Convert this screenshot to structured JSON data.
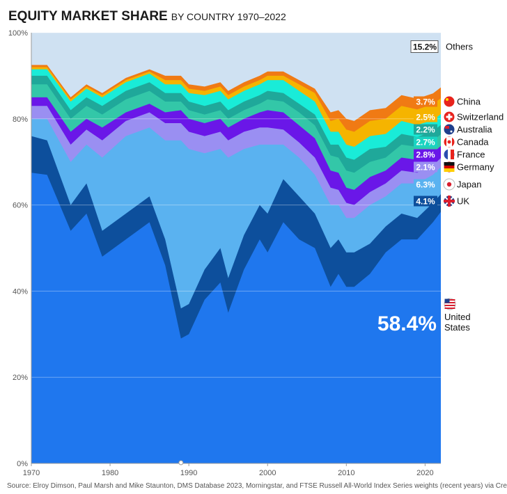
{
  "header": {
    "title": "EQUITY MARKET SHARE",
    "subtitle": "BY COUNTRY 1970–2022"
  },
  "source": "Source: Elroy Dimson, Paul Marsh and Mike Staunton, DMS Database 2023, Morningstar, and FTSE Russell All-World Index Series weights (recent years) via Credit Suisse.",
  "chart_data": {
    "type": "area",
    "stacked": true,
    "title": "EQUITY MARKET SHARE BY COUNTRY 1970–2022",
    "xlabel": "",
    "ylabel": "",
    "xlim": [
      1970,
      2022
    ],
    "ylim": [
      0,
      100
    ],
    "x_ticks": [
      "1970",
      "1980",
      "1990",
      "2000",
      "2010",
      "2020"
    ],
    "y_ticks": [
      "0%",
      "20%",
      "40%",
      "60%",
      "80%",
      "100%"
    ],
    "x": [
      1970,
      1972,
      1975,
      1977,
      1979,
      1982,
      1985,
      1987,
      1989,
      1990,
      1992,
      1994,
      1995,
      1997,
      1999,
      2000,
      2002,
      2004,
      2006,
      2008,
      2009,
      2010,
      2011,
      2013,
      2015,
      2017,
      2019,
      2021,
      2022
    ],
    "series": [
      {
        "name": "United States",
        "share_2022": "58.4%",
        "color": "#1f77ee",
        "values": [
          67.5,
          67,
          54,
          58,
          48,
          52,
          56,
          46,
          29,
          30,
          38,
          42,
          35,
          45,
          52,
          49,
          56,
          52,
          50,
          41,
          44,
          41,
          41,
          44,
          49,
          52,
          52,
          56,
          58.4
        ]
      },
      {
        "name": "UK",
        "share_2022": "4.1%",
        "color": "#0d4f9c",
        "values": [
          8.5,
          8,
          6,
          7,
          6,
          6,
          6,
          6,
          7,
          7,
          7,
          8,
          8,
          8,
          8,
          9,
          10,
          10,
          8,
          9,
          8,
          8,
          8,
          7,
          6,
          6,
          5,
          4.5,
          4.1
        ]
      },
      {
        "name": "Japan",
        "share_2022": "6.3%",
        "color": "#5ab2f0",
        "values": [
          4,
          5,
          10,
          9,
          17,
          18,
          16,
          23,
          39,
          36,
          27,
          23,
          28,
          20,
          14,
          16,
          8,
          9,
          9,
          10,
          8,
          8,
          8,
          9,
          7,
          7,
          8,
          6.5,
          6.3
        ]
      },
      {
        "name": "Germany",
        "share_2022": "2.1%",
        "color": "#9a8ff2",
        "values": [
          3,
          3,
          4,
          3.5,
          4,
          3.5,
          3.5,
          4,
          4,
          4,
          4,
          4,
          4,
          4,
          4,
          4,
          3.5,
          3.5,
          4,
          4,
          3.5,
          3.5,
          3,
          3,
          3,
          3,
          2.5,
          2.2,
          2.1
        ]
      },
      {
        "name": "France",
        "share_2022": "2.8%",
        "color": "#6a17e8",
        "values": [
          2,
          2,
          3,
          2.5,
          3,
          2,
          2,
          2.5,
          3,
          3,
          3,
          3,
          3,
          3,
          3.5,
          4,
          4,
          4,
          4.5,
          4,
          4,
          3.5,
          3.5,
          3.5,
          3,
          3,
          3,
          2.9,
          2.8
        ]
      },
      {
        "name": "Canada",
        "share_2022": "2.7%",
        "color": "#33c7a8",
        "values": [
          3,
          3,
          3,
          3,
          3,
          3,
          3,
          2.5,
          2,
          2,
          2,
          2,
          2,
          2,
          2,
          2.5,
          2.5,
          3,
          3,
          3.5,
          3.5,
          4,
          4,
          3.5,
          3,
          3,
          3,
          2.8,
          2.7
        ]
      },
      {
        "name": "Australia",
        "share_2022": "2.2%",
        "color": "#1fa89a",
        "values": [
          2,
          2,
          2,
          2,
          2,
          2,
          2,
          2,
          2,
          2,
          2,
          2,
          2,
          2,
          2,
          2,
          2,
          2,
          2.5,
          2.5,
          3,
          3,
          3,
          3,
          2.5,
          2.5,
          2.3,
          2.2,
          2.2
        ]
      },
      {
        "name": "Switzerland",
        "share_2022": "2.5%",
        "color": "#19ecd8",
        "values": [
          1.5,
          1.5,
          2,
          2,
          2,
          2,
          2,
          2,
          2,
          2,
          2.5,
          2.5,
          2.5,
          2.5,
          2.5,
          2.5,
          3,
          3,
          3,
          3,
          3,
          3,
          3,
          3,
          3,
          3,
          2.8,
          2.6,
          2.5
        ]
      },
      {
        "name": "China",
        "share_2022": "3.7%",
        "color": "#f5b400",
        "values": [
          0.5,
          0.5,
          0.5,
          0.5,
          0.5,
          0.5,
          0.5,
          1,
          1,
          1,
          1,
          1,
          1,
          1,
          1,
          1,
          1,
          1.5,
          2,
          2.5,
          3,
          3.5,
          3.5,
          3.5,
          3.5,
          3.5,
          3.6,
          3.7,
          3.7
        ]
      },
      {
        "name": "Others",
        "share_2022": "15.2%",
        "color": "#f07a14",
        "values": [
          0.5,
          0.5,
          0.5,
          0.5,
          0.5,
          0.5,
          0.5,
          1,
          1,
          1,
          1,
          1,
          1,
          1,
          1,
          1,
          1,
          1,
          1,
          2,
          2,
          2.5,
          2.5,
          2.5,
          2.5,
          2.5,
          2.5,
          2.5,
          2.5
        ]
      }
    ],
    "remainder": {
      "name": "Others (rest)",
      "color": "#cfe1f2"
    }
  },
  "labels": [
    {
      "name": "China",
      "value": "3.7%",
      "badge_color": "#f07a14",
      "flag": "china-flag-icon",
      "flag_color": "#e8231c"
    },
    {
      "name": "Switzerland",
      "value": "2.5%",
      "badge_color": "#f5b400",
      "flag": "switzerland-flag-icon",
      "flag_color": "#e8231c"
    },
    {
      "name": "Australia",
      "value": "2.2%",
      "badge_color": "#1fa89a",
      "flag": "australia-flag-icon",
      "flag_color": "#1f3f8c"
    },
    {
      "name": "Canada",
      "value": "2.7%",
      "badge_color": "#19d4c2",
      "flag": "canada-flag-icon",
      "flag_color": "#e8231c"
    },
    {
      "name": "France",
      "value": "2.8%",
      "badge_color": "#6a17e8",
      "flag": "france-flag-icon",
      "flag_color": "#2b4db0"
    },
    {
      "name": "Germany",
      "value": "2.1%",
      "badge_color": "#9a8ff2",
      "flag": "germany-flag-icon",
      "flag_color": "#d00000"
    },
    {
      "name": "Japan",
      "value": "6.3%",
      "badge_color": "#5ab2f0",
      "flag": "japan-flag-icon",
      "flag_color": "#d81e2e"
    },
    {
      "name": "UK",
      "value": "4.1%",
      "badge_color": "#0d4f9c",
      "flag": "uk-flag-icon",
      "flag_color": "#1f3f8c"
    }
  ],
  "others_label": {
    "name": "Others",
    "value": "15.2%"
  },
  "us_label": {
    "line1": "United",
    "line2": "States",
    "value": "58.4%",
    "flag": "us-flag-icon"
  }
}
